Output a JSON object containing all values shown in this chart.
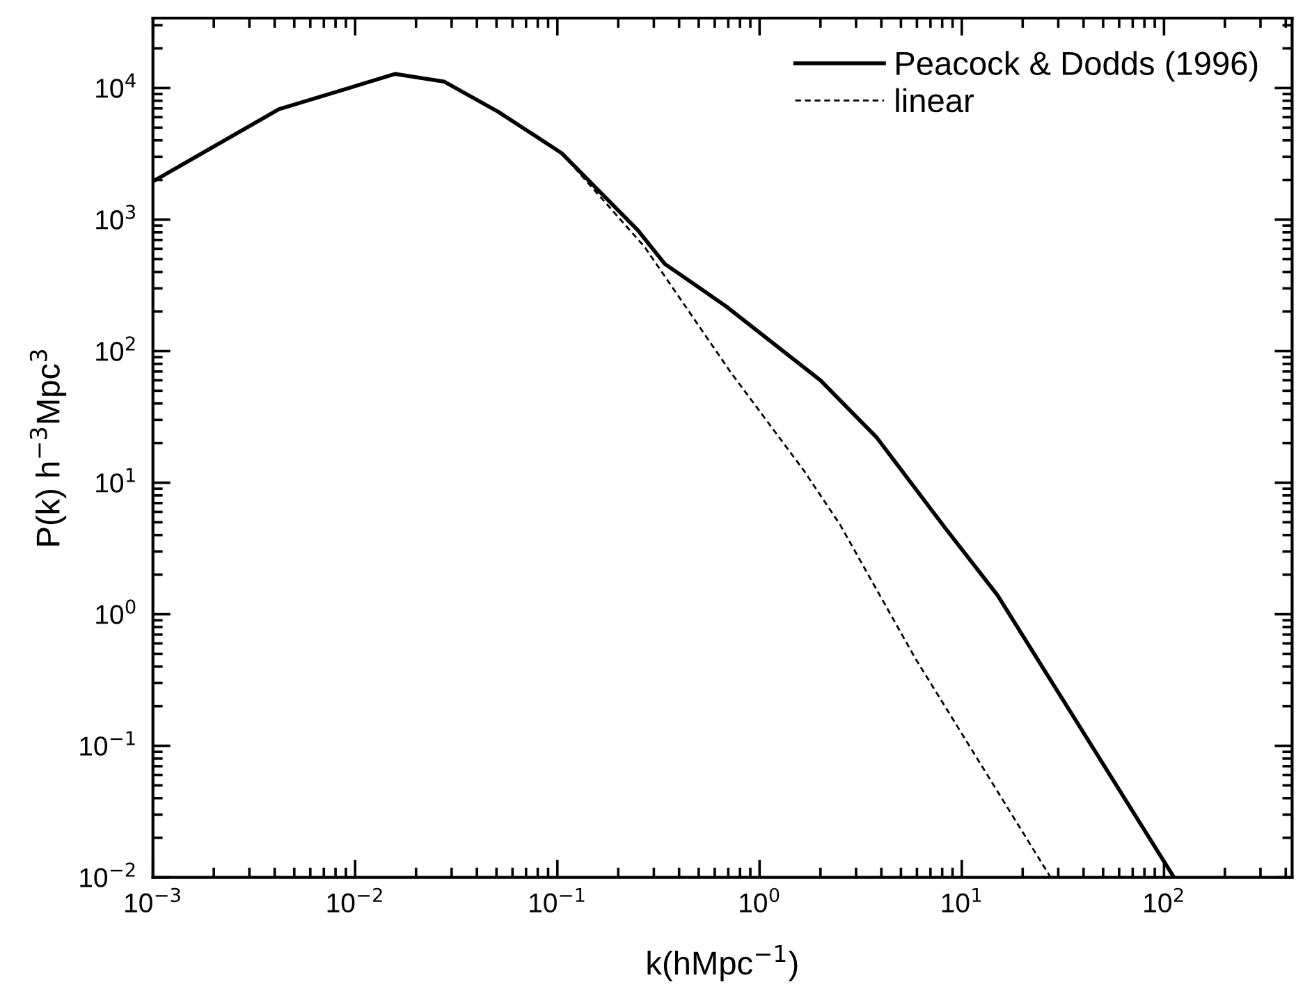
{
  "chart_data": {
    "type": "line",
    "log": "xy",
    "xlabel": "k(hMpc$^{−1}$)",
    "ylabel": "P(k) h$^{−3}$Mpc$^{3}$",
    "xlim": [
      0.001,
      430
    ],
    "ylim": [
      0.01,
      34000
    ],
    "xticks": [
      {
        "value": 0.001,
        "label": "10$^{−3}$"
      },
      {
        "value": 0.01,
        "label": "10$^{−2}$"
      },
      {
        "value": 0.1,
        "label": "10$^{−1}$"
      },
      {
        "value": 1,
        "label": "10$^{0}$"
      },
      {
        "value": 10,
        "label": "10$^{1}$"
      },
      {
        "value": 100,
        "label": "10$^{2}$"
      }
    ],
    "yticks": [
      {
        "value": 0.01,
        "label": "10$^{−2}$"
      },
      {
        "value": 0.1,
        "label": "10$^{−1}$"
      },
      {
        "value": 1,
        "label": "10$^{0}$"
      },
      {
        "value": 10,
        "label": "10$^{1}$"
      },
      {
        "value": 100,
        "label": "10$^{2}$"
      },
      {
        "value": 1000,
        "label": "10$^{3}$"
      },
      {
        "value": 10000,
        "label": "10$^{4}$"
      }
    ],
    "grid": false,
    "legend": "top right",
    "series": [
      {
        "name": "Peacock & Dodds (1996)",
        "color": "#000000",
        "line_style": "solid",
        "x": [
          0.001,
          0.0042,
          0.0158,
          0.0275,
          0.051,
          0.105,
          0.25,
          0.34,
          0.68,
          2.0,
          3.8,
          8.3,
          15,
          112
        ],
        "values": [
          1950,
          6900,
          12800,
          11200,
          6600,
          3200,
          830,
          460,
          220,
          60,
          22,
          4.5,
          1.4,
          0.01
        ]
      },
      {
        "name": "linear",
        "color": "#000000",
        "line_style": "dashed",
        "x": [
          0.001,
          0.0042,
          0.0158,
          0.0275,
          0.051,
          0.105,
          0.27,
          0.72,
          1.66,
          2.5,
          5.9,
          27.5
        ],
        "values": [
          1950,
          6900,
          12800,
          11200,
          6600,
          3200,
          620,
          69,
          12.3,
          4.8,
          0.46,
          0.01
        ]
      }
    ]
  }
}
